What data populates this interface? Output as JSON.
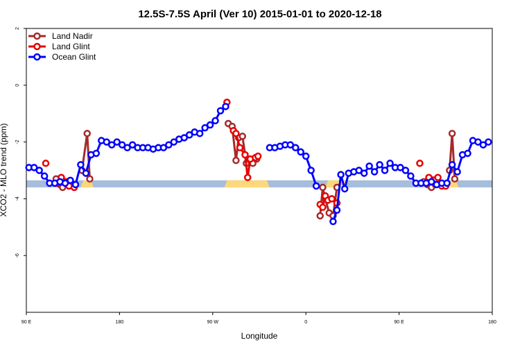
{
  "chart_data": {
    "type": "line",
    "title": "12.5S-7.5S April (Ver 10)   2015-01-01 to 2020-12-18",
    "xlabel": "Longitude",
    "ylabel": "XCO2 - MLO trend (ppm)",
    "xlim": [
      0,
      360
    ],
    "ylim": [
      -8,
      2
    ],
    "x_ticks": [
      {
        "value": 0,
        "label": "90 E"
      },
      {
        "value": 72,
        "label": "180"
      },
      {
        "value": 144,
        "label": "90 W"
      },
      {
        "value": 216,
        "label": "0"
      },
      {
        "value": 288,
        "label": "90 E"
      },
      {
        "value": 360,
        "label": "180"
      }
    ],
    "y_ticks": [
      {
        "value": 2,
        "label": "2"
      },
      {
        "value": 0,
        "label": "0"
      },
      {
        "value": -2,
        "label": "-2"
      },
      {
        "value": -4,
        "label": "-4"
      },
      {
        "value": -6,
        "label": "-6"
      }
    ],
    "legend_position": "top-left",
    "grid": false,
    "land_band": {
      "y_range": [
        -3.6,
        -3.35
      ],
      "ocean_color": "#a6bddb",
      "land_color": "#fdd87a",
      "land_segments": [
        [
          42,
          52
        ],
        [
          153,
          188
        ],
        [
          231,
          248
        ],
        [
          326,
          334
        ]
      ]
    },
    "series": [
      {
        "name": "Land Nadir",
        "color": "#a52a2a",
        "segments": [
          [
            [
              23,
              -3.3
            ],
            [
              26,
              -3.5
            ],
            [
              28,
              -3.6
            ],
            [
              31,
              -3.4
            ]
          ],
          [
            [
              43,
              -3.0
            ],
            [
              47,
              -1.7
            ],
            [
              49,
              -3.3
            ]
          ],
          [
            [
              156,
              -1.35
            ],
            [
              159,
              -1.45
            ],
            [
              162,
              -2.65
            ],
            [
              164,
              -1.85
            ],
            [
              167,
              -1.8
            ],
            [
              170,
              -2.75
            ],
            [
              173,
              -2.65
            ],
            [
              175,
              -2.75
            ],
            [
              178,
              -2.6
            ]
          ],
          [
            [
              227,
              -4.6
            ],
            [
              229,
              -3.6
            ],
            [
              231,
              -4.0
            ],
            [
              234,
              -4.5
            ],
            [
              237,
              -4.6
            ],
            [
              240,
              -3.6
            ]
          ],
          [
            [
              307,
              -3.4
            ],
            [
              310,
              -3.5
            ],
            [
              313,
              -3.6
            ],
            [
              316,
              -3.5
            ]
          ],
          [
            [
              327,
              -3.0
            ],
            [
              329,
              -1.7
            ],
            [
              331,
              -3.3
            ]
          ]
        ]
      },
      {
        "name": "Land Glint",
        "color": "#e60000",
        "segments": [
          [
            [
              15,
              -2.75
            ]
          ],
          [
            [
              24,
              -3.45
            ],
            [
              27,
              -3.25
            ],
            [
              30,
              -3.4
            ],
            [
              33,
              -3.55
            ],
            [
              37,
              -3.6
            ]
          ],
          [
            [
              155,
              -0.6
            ]
          ],
          [
            [
              160,
              -1.6
            ],
            [
              162,
              -1.7
            ],
            [
              165,
              -2.2
            ],
            [
              169,
              -2.45
            ],
            [
              171,
              -3.25
            ],
            [
              173,
              -2.6
            ],
            [
              177,
              -2.55
            ],
            [
              179,
              -2.5
            ]
          ],
          [
            [
              227,
              -4.2
            ],
            [
              229,
              -4.3
            ],
            [
              231,
              -3.9
            ],
            [
              233,
              -4.05
            ],
            [
              236,
              -4.0
            ],
            [
              240,
              -4.15
            ]
          ],
          [
            [
              304,
              -2.75
            ]
          ],
          [
            [
              311,
              -3.25
            ],
            [
              318,
              -3.25
            ],
            [
              321,
              -3.55
            ],
            [
              324,
              -3.55
            ]
          ]
        ]
      },
      {
        "name": "Ocean Glint",
        "color": "#0000ff",
        "segments": [
          [
            [
              2,
              -2.9
            ],
            [
              6,
              -2.9
            ],
            [
              10,
              -3.0
            ],
            [
              14,
              -3.2
            ],
            [
              18,
              -3.45
            ],
            [
              22,
              -3.45
            ],
            [
              26,
              -3.4
            ],
            [
              30,
              -3.45
            ],
            [
              34,
              -3.35
            ],
            [
              38,
              -3.5
            ],
            [
              42,
              -2.8
            ],
            [
              46,
              -3.1
            ],
            [
              50,
              -2.45
            ],
            [
              54,
              -2.4
            ],
            [
              58,
              -1.95
            ],
            [
              62,
              -2.0
            ],
            [
              66,
              -2.1
            ],
            [
              70,
              -2.0
            ],
            [
              74,
              -2.1
            ],
            [
              78,
              -2.2
            ],
            [
              82,
              -2.1
            ],
            [
              86,
              -2.2
            ],
            [
              90,
              -2.2
            ],
            [
              94,
              -2.2
            ],
            [
              98,
              -2.25
            ],
            [
              102,
              -2.2
            ],
            [
              106,
              -2.2
            ],
            [
              110,
              -2.1
            ],
            [
              114,
              -2.0
            ],
            [
              118,
              -1.9
            ],
            [
              122,
              -1.85
            ],
            [
              126,
              -1.75
            ],
            [
              130,
              -1.65
            ],
            [
              134,
              -1.7
            ],
            [
              138,
              -1.5
            ],
            [
              142,
              -1.4
            ],
            [
              146,
              -1.25
            ],
            [
              150,
              -0.9
            ],
            [
              154,
              -0.75
            ]
          ],
          [
            [
              188,
              -2.2
            ],
            [
              192,
              -2.2
            ],
            [
              196,
              -2.15
            ],
            [
              200,
              -2.1
            ],
            [
              204,
              -2.1
            ],
            [
              208,
              -2.2
            ],
            [
              212,
              -2.35
            ],
            [
              216,
              -2.5
            ],
            [
              220,
              -3.0
            ],
            [
              224,
              -3.55
            ]
          ],
          [
            [
              237,
              -4.8
            ],
            [
              240,
              -4.4
            ],
            [
              243,
              -3.15
            ],
            [
              246,
              -3.65
            ],
            [
              249,
              -3.1
            ],
            [
              253,
              -3.05
            ],
            [
              257,
              -3.0
            ],
            [
              261,
              -3.1
            ],
            [
              265,
              -2.85
            ],
            [
              269,
              -3.05
            ],
            [
              273,
              -2.8
            ],
            [
              277,
              -3.0
            ],
            [
              281,
              -2.75
            ],
            [
              285,
              -2.9
            ],
            [
              289,
              -2.9
            ],
            [
              293,
              -3.0
            ],
            [
              297,
              -3.2
            ],
            [
              301,
              -3.45
            ],
            [
              305,
              -3.45
            ],
            [
              309,
              -3.45
            ],
            [
              313,
              -3.4
            ],
            [
              317,
              -3.5
            ],
            [
              321,
              -3.45
            ],
            [
              325,
              -3.45
            ],
            [
              329,
              -2.8
            ],
            [
              333,
              -3.05
            ],
            [
              337,
              -2.45
            ],
            [
              341,
              -2.4
            ],
            [
              345,
              -1.95
            ],
            [
              349,
              -2.0
            ],
            [
              353,
              -2.1
            ],
            [
              357,
              -2.0
            ]
          ]
        ]
      }
    ]
  }
}
